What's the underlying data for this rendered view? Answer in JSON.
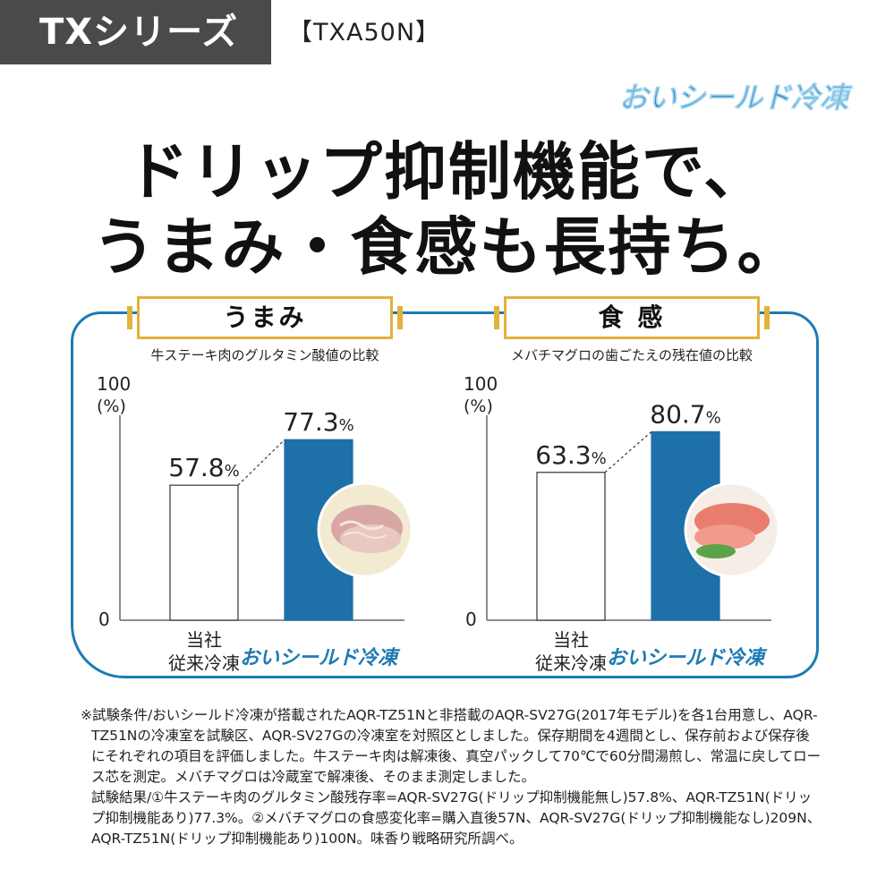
{
  "header": {
    "series": "TXシリーズ",
    "model": "【TXA50N】",
    "brand": "おいシールド冷凍"
  },
  "headline": {
    "line1": "ドリップ抑制機能で、",
    "line2": "うまみ・食感も長持ち。"
  },
  "colors": {
    "accent_blue": "#1d7bb5",
    "gold": "#e3b23a",
    "badge_gray": "#4a4a4a"
  },
  "chart_data": [
    {
      "type": "bar",
      "title": "うまみ",
      "subtitle": "牛ステーキ肉のグルタミン酸値の比較",
      "ylabel": "(%)",
      "ylim": [
        0,
        100
      ],
      "yticks": [
        "0",
        "100"
      ],
      "categories": [
        "当社従来冷凍",
        "おいシールド冷凍"
      ],
      "category_lines": [
        [
          "当社",
          "従来冷凍"
        ],
        [
          "おいシールド冷凍"
        ]
      ],
      "values": [
        57.8,
        77.3
      ],
      "value_labels": [
        "57.8",
        "77.3"
      ],
      "unit": "%",
      "bar_colors": [
        "#ffffff",
        "#1d70a8"
      ],
      "photo": "beef-steak-photo"
    },
    {
      "type": "bar",
      "title": "食 感",
      "subtitle": "メバチマグロの歯ごたえの残在値の比較",
      "ylabel": "(%)",
      "ylim": [
        0,
        100
      ],
      "yticks": [
        "0",
        "100"
      ],
      "categories": [
        "当社従来冷凍",
        "おいシールド冷凍"
      ],
      "category_lines": [
        [
          "当社",
          "従来冷凍"
        ],
        [
          "おいシールド冷凍"
        ]
      ],
      "values": [
        63.3,
        80.7
      ],
      "value_labels": [
        "63.3",
        "80.7"
      ],
      "unit": "%",
      "bar_colors": [
        "#ffffff",
        "#1d70a8"
      ],
      "photo": "tuna-sashimi-photo"
    }
  ],
  "notes": {
    "line1": "※試験条件/おいシールド冷凍が搭載されたAQR-TZ51Nと非搭載のAQR-SV27G(2017年モデル)を各1台用意し、AQR-TZ51Nの冷凍室を試験区、AQR-SV27Gの冷凍室を対照区としました。保存期間を4週間とし、保存前および保存後にそれぞれの項目を評価しました。牛ステーキ肉は解凍後、真空パックして70℃で60分間湯煎し、常温に戻してロース芯を測定。メバチマグロは冷蔵室で解凍後、そのまま測定しました。",
    "line2": "試験結果/①牛ステーキ肉のグルタミン酸残存率=AQR-SV27G(ドリップ抑制機能無し)57.8%、AQR-TZ51N(ドリップ抑制機能あり)77.3%。②メバチマグロの食感変化率=購入直後57N、AQR-SV27G(ドリップ抑制機能なし)209N、AQR-TZ51N(ドリップ抑制機能あり)100N。味香り戦略研究所調べ。"
  }
}
